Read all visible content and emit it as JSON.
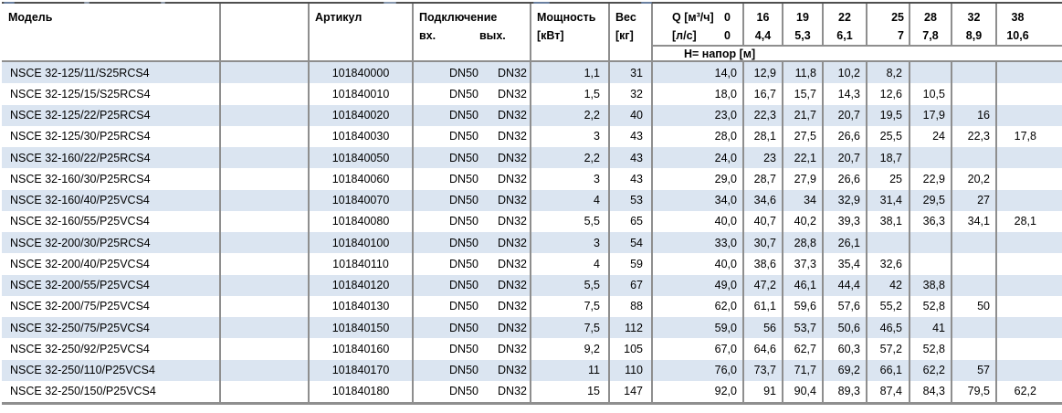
{
  "colors": {
    "row_alt_bg": "#dbe5f1",
    "grid_border": "#8e8e8e",
    "table_top_border": "#4f4f4f",
    "text": "#000000",
    "artifact_blue": "#6d87ad"
  },
  "table": {
    "headers": {
      "model": "Модель",
      "article": "Артикул",
      "connection": "Подключение",
      "conn_in": "вх.",
      "conn_out": "вых.",
      "power_l1": "Мощность",
      "power_l2": "[кВт]",
      "weight_l1": "Вес",
      "weight_l2": "[кг]",
      "q_line1_label": "Q [м³/ч]",
      "q_line1_zero": "0",
      "q_line2_label": "[л/с]",
      "q_line2_zero": "0",
      "head_row": "Н= напор [м]",
      "q_cols": [
        {
          "m3h": "16",
          "ls": "4,4"
        },
        {
          "m3h": "19",
          "ls": "5,3"
        },
        {
          "m3h": "22",
          "ls": "6,1"
        },
        {
          "m3h": "25",
          "ls": "7"
        },
        {
          "m3h": "28",
          "ls": "7,8"
        },
        {
          "m3h": "32",
          "ls": "8,9"
        },
        {
          "m3h": "38",
          "ls": "10,6"
        }
      ]
    },
    "rows": [
      {
        "model": "NSCE 32-125/11/S25RCS4",
        "article": "101840000",
        "conn_in": "DN50",
        "conn_out": "DN32",
        "power": "1,1",
        "weight": "31",
        "h": [
          "14,0",
          "12,9",
          "11,8",
          "10,2",
          "8,2",
          "",
          "",
          ""
        ]
      },
      {
        "model": "NSCE 32-125/15/S25RCS4",
        "article": "101840010",
        "conn_in": "DN50",
        "conn_out": "DN32",
        "power": "1,5",
        "weight": "32",
        "h": [
          "18,0",
          "16,7",
          "15,7",
          "14,3",
          "12,6",
          "10,5",
          "",
          ""
        ]
      },
      {
        "model": "NSCE 32-125/22/P25RCS4",
        "article": "101840020",
        "conn_in": "DN50",
        "conn_out": "DN32",
        "power": "2,2",
        "weight": "40",
        "h": [
          "23,0",
          "22,3",
          "21,7",
          "20,7",
          "19,5",
          "17,9",
          "16",
          ""
        ]
      },
      {
        "model": "NSCE 32-125/30/P25RCS4",
        "article": "101840030",
        "conn_in": "DN50",
        "conn_out": "DN32",
        "power": "3",
        "weight": "43",
        "h": [
          "28,0",
          "28,1",
          "27,5",
          "26,6",
          "25,5",
          "24",
          "22,3",
          "17,8"
        ]
      },
      {
        "model": "NSCE 32-160/22/P25RCS4",
        "article": "101840050",
        "conn_in": "DN50",
        "conn_out": "DN32",
        "power": "2,2",
        "weight": "43",
        "h": [
          "24,0",
          "23",
          "22,1",
          "20,7",
          "18,7",
          "",
          "",
          ""
        ]
      },
      {
        "model": "NSCE 32-160/30/P25RCS4",
        "article": "101840060",
        "conn_in": "DN50",
        "conn_out": "DN32",
        "power": "3",
        "weight": "43",
        "h": [
          "29,0",
          "28,7",
          "27,9",
          "26,6",
          "25",
          "22,9",
          "20,2",
          ""
        ]
      },
      {
        "model": "NSCE 32-160/40/P25VCS4",
        "article": "101840070",
        "conn_in": "DN50",
        "conn_out": "DN32",
        "power": "4",
        "weight": "53",
        "h": [
          "34,0",
          "34,6",
          "34",
          "32,9",
          "31,4",
          "29,5",
          "27",
          ""
        ]
      },
      {
        "model": "NSCE 32-160/55/P25VCS4",
        "article": "101840080",
        "conn_in": "DN50",
        "conn_out": "DN32",
        "power": "5,5",
        "weight": "65",
        "h": [
          "40,0",
          "40,7",
          "40,2",
          "39,3",
          "38,1",
          "36,3",
          "34,1",
          "28,1"
        ]
      },
      {
        "model": "NSCE 32-200/30/P25RCS4",
        "article": "101840100",
        "conn_in": "DN50",
        "conn_out": "DN32",
        "power": "3",
        "weight": "54",
        "h": [
          "33,0",
          "30,7",
          "28,8",
          "26,1",
          "",
          "",
          "",
          ""
        ]
      },
      {
        "model": "NSCE 32-200/40/P25VCS4",
        "article": "101840110",
        "conn_in": "DN50",
        "conn_out": "DN32",
        "power": "4",
        "weight": "59",
        "h": [
          "40,0",
          "38,6",
          "37,3",
          "35,4",
          "32,6",
          "",
          "",
          ""
        ]
      },
      {
        "model": "NSCE 32-200/55/P25VCS4",
        "article": "101840120",
        "conn_in": "DN50",
        "conn_out": "DN32",
        "power": "5,5",
        "weight": "67",
        "h": [
          "49,0",
          "47,2",
          "46,1",
          "44,4",
          "42",
          "38,8",
          "",
          ""
        ]
      },
      {
        "model": "NSCE 32-200/75/P25VCS4",
        "article": "101840130",
        "conn_in": "DN50",
        "conn_out": "DN32",
        "power": "7,5",
        "weight": "88",
        "h": [
          "62,0",
          "61,1",
          "59,6",
          "57,6",
          "55,2",
          "52,8",
          "50",
          ""
        ]
      },
      {
        "model": "NSCE 32-250/75/P25VCS4",
        "article": "101840150",
        "conn_in": "DN50",
        "conn_out": "DN32",
        "power": "7,5",
        "weight": "112",
        "h": [
          "59,0",
          "56",
          "53,7",
          "50,6",
          "46,5",
          "41",
          "",
          ""
        ]
      },
      {
        "model": "NSCE 32-250/92/P25VCS4",
        "article": "101840160",
        "conn_in": "DN50",
        "conn_out": "DN32",
        "power": "9,2",
        "weight": "105",
        "h": [
          "67,0",
          "64,6",
          "62,7",
          "60,3",
          "57,2",
          "52,8",
          "",
          ""
        ]
      },
      {
        "model": "NSCE 32-250/110/P25VCS4",
        "article": "101840170",
        "conn_in": "DN50",
        "conn_out": "DN32",
        "power": "11",
        "weight": "110",
        "h": [
          "76,0",
          "73,7",
          "71,7",
          "69,2",
          "66,1",
          "62,2",
          "57",
          ""
        ]
      },
      {
        "model": "NSCE 32-250/150/P25VCS4",
        "article": "101840180",
        "conn_in": "DN50",
        "conn_out": "DN32",
        "power": "15",
        "weight": "147",
        "h": [
          "92,0",
          "91",
          "90,4",
          "89,3",
          "87,4",
          "84,3",
          "79,5",
          "62,2"
        ]
      }
    ]
  }
}
